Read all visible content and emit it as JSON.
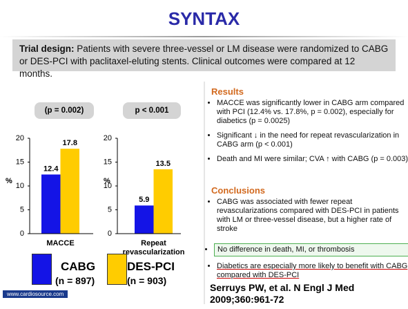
{
  "title": "SYNTAX",
  "trial_design": {
    "label": "Trial design:",
    "text": "Patients with severe three-vessel or LM disease were randomized to CABG or DES-PCI with paclitaxel-eluting stents. Clinical outcomes were compared at 12 months."
  },
  "chart_data": [
    {
      "type": "bar",
      "annotation": "(p = 0.002)",
      "y_label": "%",
      "categories": [
        "MACCE"
      ],
      "series": [
        {
          "color": "#1414e6",
          "values": [
            12.4
          ]
        },
        {
          "color": "#ffcc00",
          "values": [
            17.8
          ]
        }
      ],
      "ylim": [
        0,
        20
      ],
      "yticks": [
        0,
        5,
        10,
        15,
        20
      ]
    },
    {
      "type": "bar",
      "annotation": "p < 0.001",
      "y_label": "%",
      "categories": [
        "Repeat revascularization"
      ],
      "series": [
        {
          "color": "#1414e6",
          "values": [
            5.9
          ]
        },
        {
          "color": "#ffcc00",
          "values": [
            13.5
          ]
        }
      ],
      "ylim": [
        0,
        20
      ],
      "yticks": [
        0,
        5,
        10,
        15,
        20
      ]
    }
  ],
  "legend": [
    {
      "name": "CABG",
      "n": "(n = 897)",
      "color": "#1414e6"
    },
    {
      "name": "DES-PCI",
      "n": "(n = 903)",
      "color": "#ffcc00"
    }
  ],
  "results": {
    "heading": "Results",
    "bullets": [
      "MACCE was significantly lower in CABG arm compared with PCI (12.4% vs. 17.8%, p = 0.002), especially for diabetics (p = 0.0025)",
      "Significant ↓ in the need for repeat revascularization in CABG arm (p < 0.001)",
      "Death and MI were similar; CVA ↑ with CABG (p = 0.003)"
    ]
  },
  "conclusions": {
    "heading": "Conclusions",
    "bullets": [
      "CABG was associated with fewer repeat revascularizations compared with DES-PCI in patients with LM or three-vessel disease, but a higher rate of stroke",
      "No difference in death, MI, or thrombosis",
      "Diabetics are especially more likely to benefit with CABG compared with DES-PCI"
    ]
  },
  "citation": "Serruys PW, et al. N Engl J Med 2009;360:961-72",
  "footer": "www.cardiosource.com"
}
